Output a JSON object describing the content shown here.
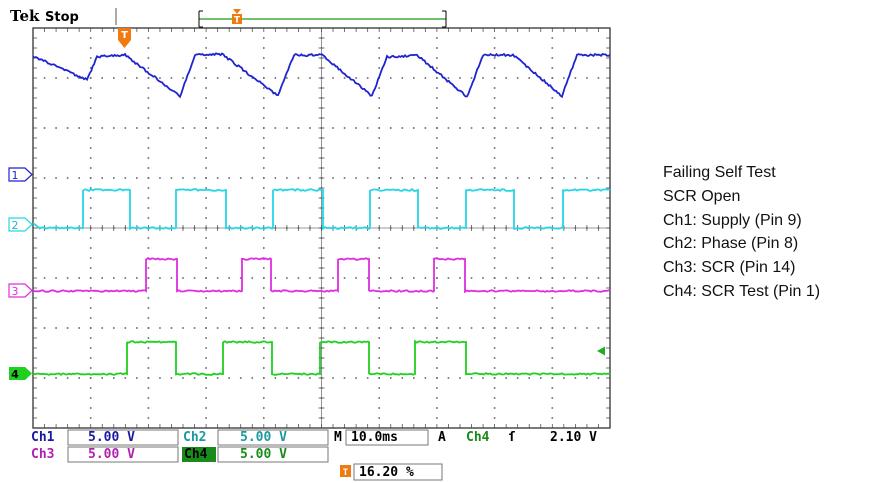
{
  "header": {
    "brand": "Tek",
    "run_state": "Stop",
    "trigger_marker_label": "T"
  },
  "channel_markers": [
    "1",
    "2",
    "3",
    "4"
  ],
  "colors": {
    "ch1": "#1f24d0",
    "ch2": "#25d6e6",
    "ch3": "#e02de0",
    "ch4": "#1fd01f",
    "trigger": "#f07a10",
    "grid": "#666666",
    "label_blue": "#1a1aa0"
  },
  "status": {
    "row1": [
      {
        "label": "Ch1",
        "value": "5.00 V",
        "color": "#1a1aa0",
        "highlight": false
      },
      {
        "label": "Ch2",
        "value": "5.00 V",
        "color": "#1a9aa0",
        "highlight": false
      }
    ],
    "timebase": {
      "prefix": "M",
      "value": "10.0ms"
    },
    "trigger_info": {
      "mode": "A",
      "channel": "Ch4",
      "slope": "ſ",
      "level": "2.10 V"
    },
    "row2": [
      {
        "label": "Ch3",
        "value": "5.00 V",
        "color": "#b020b0",
        "highlight": false
      },
      {
        "label": "Ch4",
        "value": "5.00 V",
        "color": "#1a8a1a",
        "highlight": true
      }
    ],
    "trigger_position": "16.20 %"
  },
  "notes": [
    "Failing Self Test",
    "SCR Open",
    "Ch1: Supply (Pin 9)",
    "Ch2: Phase (Pin 8)",
    "Ch3: SCR (Pin 14)",
    "Ch4: SCR Test (Pin 1)"
  ]
}
